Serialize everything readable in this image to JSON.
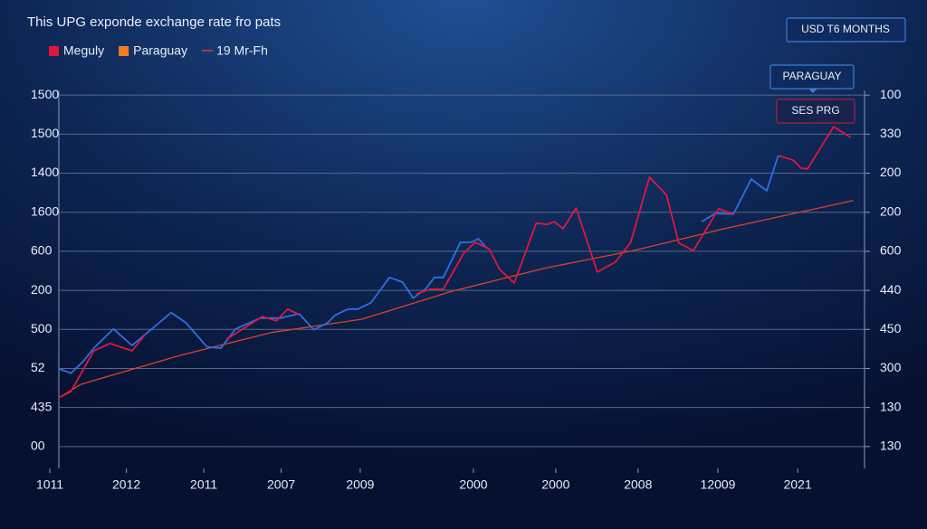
{
  "chart_data": {
    "type": "line",
    "title": "This UPG exponde exchange rate fro pats",
    "buttons": [
      "USD T6 MONTHS",
      "PARAGUAY",
      "SES PRG"
    ],
    "series": [
      {
        "name": "Meguly",
        "color": "#e0163e",
        "swatch_color": "#e0163e",
        "x": [
          1.1,
          2.6,
          5.4,
          7.4,
          10.1,
          11.7,
          null,
          21.7,
          26.1,
          27.8,
          29.2,
          30.6,
          null,
          45,
          46.7,
          48.3,
          50.8,
          52.2,
          53.9,
          55.2,
          57,
          59.7,
          61.1,
          61.9,
          63,
          64.6,
          67.2,
          69.4,
          71.3,
          73.6,
          75.7,
          77.2,
          79,
          82.1,
          83.9,
          null,
          89.4,
          91.2,
          92.2,
          93,
          96.2,
          98.3
        ],
        "values": [
          1.25,
          1.41,
          2.45,
          2.64,
          2.45,
          2.87,
          null,
          2.75,
          3.33,
          3.22,
          3.52,
          3.38,
          null,
          3.91,
          4.03,
          4.03,
          4.95,
          5.23,
          5.07,
          4.54,
          4.19,
          5.72,
          5.69,
          5.76,
          5.58,
          6.11,
          4.47,
          4.72,
          5.23,
          6.9,
          6.44,
          5.21,
          5.02,
          6.09,
          5.95,
          null,
          7.45,
          7.34,
          7.13,
          7.11,
          8.19,
          7.92
        ]
      },
      {
        "name": "Paraguay",
        "color": "#2f6fe0",
        "swatch_color": "#f07f1c",
        "x": [
          1.1,
          2.6,
          4.1,
          5.4,
          7.8,
          10.1,
          12,
          14.9,
          16.7,
          19.3,
          21,
          22.8,
          25.8,
          28.3,
          30.6,
          32.4,
          34.1,
          35,
          36.6,
          37.8,
          39.4,
          41.7,
          43.3,
          44.6,
          46.1,
          47.2,
          48.3,
          50.4,
          51.7,
          52.6,
          53.7,
          null,
          80,
          81.7,
          83.9,
          86.1,
          88,
          89.4
        ],
        "values": [
          1.99,
          1.88,
          2.18,
          2.52,
          3.01,
          2.59,
          2.92,
          3.43,
          3.17,
          2.55,
          2.52,
          3.01,
          3.29,
          3.29,
          3.4,
          2.99,
          3.17,
          3.36,
          3.52,
          3.52,
          3.68,
          4.33,
          4.21,
          3.8,
          4.03,
          4.33,
          4.33,
          5.23,
          5.23,
          5.32,
          5.07,
          null,
          5.76,
          5.97,
          5.95,
          6.85,
          6.55,
          7.45
        ]
      },
      {
        "name": "19 Mr-Fh",
        "color": "#e0402a",
        "swatch_color": "#e0402a",
        "x": [
          1.1,
          3.9,
          16.1,
          27.2,
          38.3,
          49.4,
          60.6,
          71.7,
          82.8,
          98.6
        ],
        "values": [
          1.25,
          1.6,
          2.34,
          2.92,
          3.26,
          3.98,
          4.56,
          5.02,
          5.58,
          6.3
        ]
      }
    ],
    "xlim": [
      0,
      100
    ],
    "xticks": [
      {
        "value": 0,
        "label": "1011"
      },
      {
        "value": 9.4,
        "label": "2012"
      },
      {
        "value": 18.9,
        "label": "2011"
      },
      {
        "value": 28.4,
        "label": "2007"
      },
      {
        "value": 38.1,
        "label": "2009"
      },
      {
        "value": 52,
        "label": "2000"
      },
      {
        "value": 62.1,
        "label": "2000"
      },
      {
        "value": 72.2,
        "label": "2008"
      },
      {
        "value": 82,
        "label": "12009"
      },
      {
        "value": 91.8,
        "label": "2021"
      }
    ],
    "ylim": [
      -0.56,
      9.12
    ],
    "yticks": [
      {
        "value": 9,
        "label": "1500"
      },
      {
        "value": 8,
        "label": "1500"
      },
      {
        "value": 7,
        "label": "1400"
      },
      {
        "value": 6,
        "label": "1600"
      },
      {
        "value": 5,
        "label": "600"
      },
      {
        "value": 4,
        "label": "200"
      },
      {
        "value": 3,
        "label": "500"
      },
      {
        "value": 2,
        "label": "52"
      },
      {
        "value": 1,
        "label": "435"
      },
      {
        "value": 0,
        "label": "00"
      }
    ],
    "y2lim": [
      -0.56,
      9.12
    ],
    "y2ticks": [
      {
        "value": 9,
        "label": "100"
      },
      {
        "value": 8,
        "label": "330"
      },
      {
        "value": 7,
        "label": "200"
      },
      {
        "value": 6,
        "label": "200"
      },
      {
        "value": 5,
        "label": "600"
      },
      {
        "value": 4,
        "label": "440"
      },
      {
        "value": 3,
        "label": "450"
      },
      {
        "value": 2,
        "label": "300"
      },
      {
        "value": 1,
        "label": "130"
      },
      {
        "value": 0,
        "label": "130"
      }
    ],
    "grid": true
  }
}
